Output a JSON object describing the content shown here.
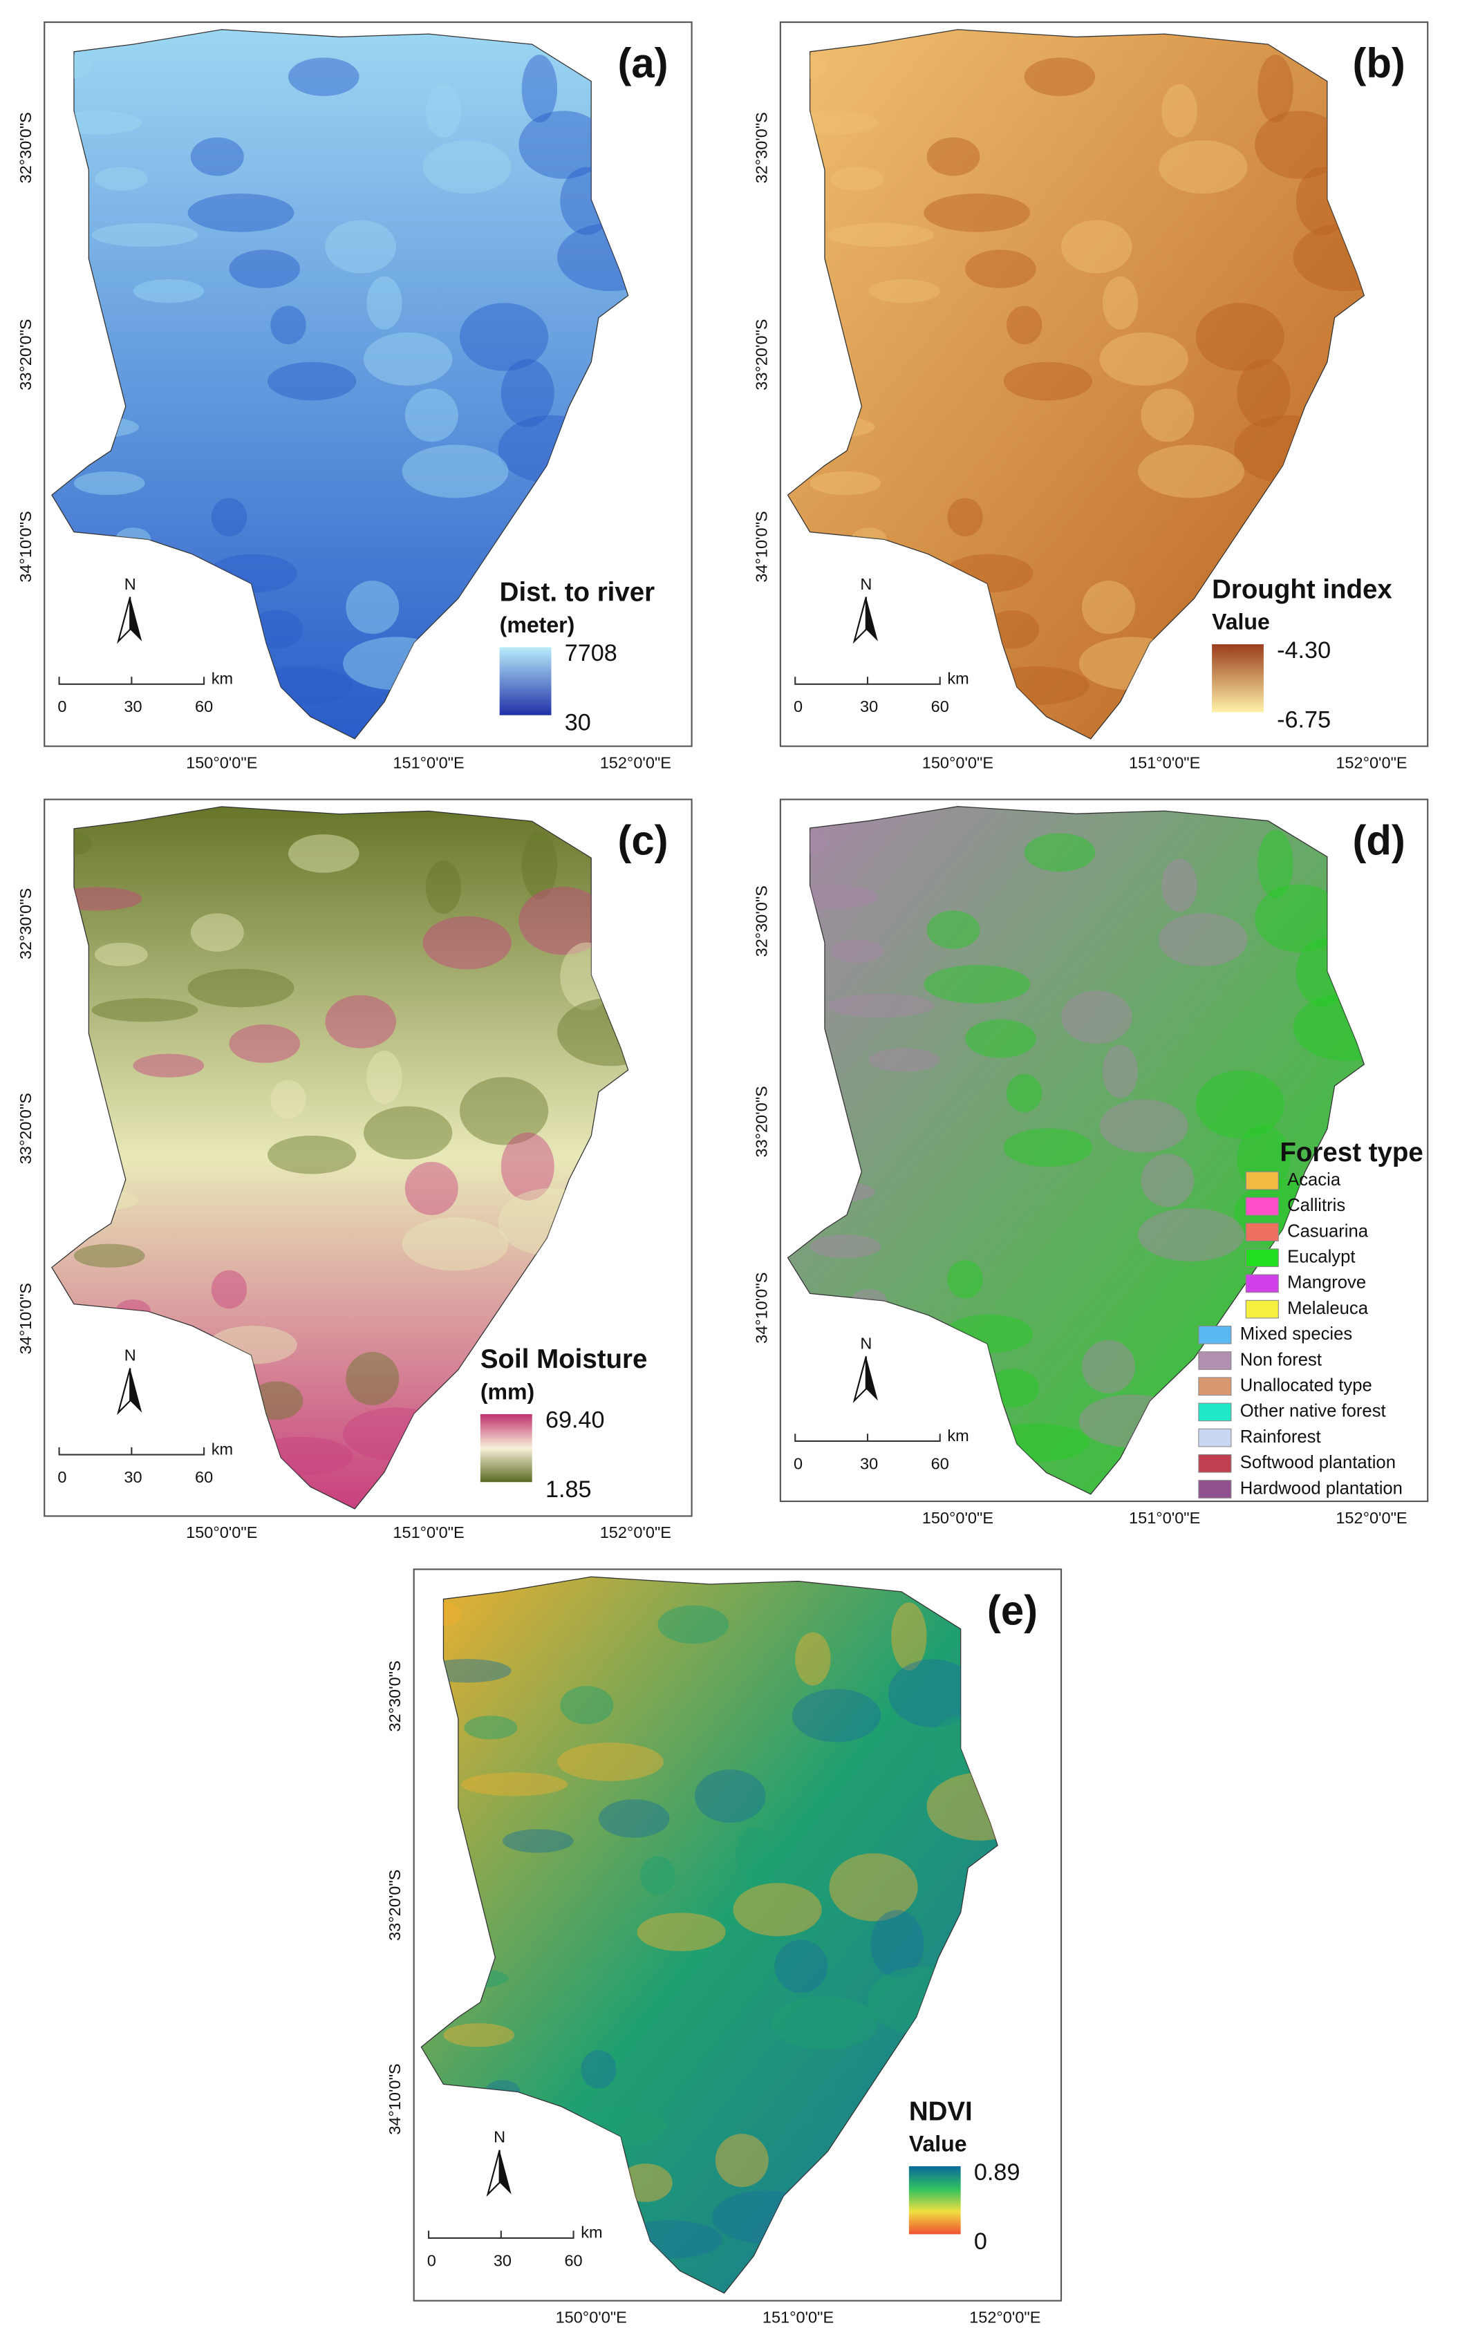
{
  "panels": [
    {
      "label": "(a)",
      "lat_labels": [
        "32°30'0\"S",
        "33°20'0\"S",
        "34°10'0\"S"
      ],
      "lon_labels": [
        "150°0'0\"E",
        "151°0'0\"E",
        "152°0'0\"E"
      ],
      "north": "N",
      "scale": {
        "labels": [
          "0",
          "30",
          "60"
        ],
        "unit": "km"
      },
      "legend": {
        "title": "Dist. to river",
        "subtitle": "(meter)",
        "max": "7708",
        "min": "30",
        "colors": [
          "#b8ecfa",
          "#2030a8"
        ]
      },
      "map_colors": [
        "#9bd6f2",
        "#2a5cc8"
      ]
    },
    {
      "label": "(b)",
      "lat_labels": [
        "32°30'0\"S",
        "33°20'0\"S",
        "34°10'0\"S"
      ],
      "lon_labels": [
        "150°0'0\"E",
        "151°0'0\"E",
        "152°0'0\"E"
      ],
      "north": "N",
      "scale": {
        "labels": [
          "0",
          "30",
          "60"
        ],
        "unit": "km"
      },
      "legend": {
        "title": "Drought index",
        "subtitle": "Value",
        "max": "-4.30",
        "min": "-6.75",
        "colors": [
          "#9a3c1c",
          "#fff2a8"
        ]
      },
      "map_colors": [
        "#f0c070",
        "#b8601e"
      ]
    },
    {
      "label": "(c)",
      "lat_labels": [
        "32°30'0\"S",
        "33°20'0\"S",
        "34°10'0\"S"
      ],
      "lon_labels": [
        "150°0'0\"E",
        "151°0'0\"E",
        "152°0'0\"E"
      ],
      "north": "N",
      "scale": {
        "labels": [
          "0",
          "30",
          "60"
        ],
        "unit": "km"
      },
      "legend": {
        "title": "Soil Moisture",
        "subtitle": "(mm)",
        "max": "69.40",
        "min": "1.85",
        "colors": [
          "#c0306e",
          "#f8f0d8",
          "#5a6a20"
        ]
      },
      "map_colors": [
        "#66762a",
        "#e8e8b8",
        "#c8407e"
      ]
    },
    {
      "label": "(d)",
      "lat_labels": [
        "32°30'0\"S",
        "33°20'0\"S",
        "34°10'0\"S"
      ],
      "lon_labels": [
        "150°0'0\"E",
        "151°0'0\"E",
        "152°0'0\"E"
      ],
      "north": "N",
      "scale": {
        "labels": [
          "0",
          "30",
          "60"
        ],
        "unit": "km"
      },
      "legend": {
        "title": "Forest type",
        "items": [
          {
            "name": "Acacia",
            "color": "#f4b942"
          },
          {
            "name": "Callitris",
            "color": "#ff4fc8"
          },
          {
            "name": "Casuarina",
            "color": "#f07060"
          },
          {
            "name": "Eucalypt",
            "color": "#22dd22"
          },
          {
            "name": "Mangrove",
            "color": "#d040e8"
          },
          {
            "name": "Melaleuca",
            "color": "#f5f040"
          },
          {
            "name": "Mixed species",
            "color": "#5bb8f0"
          },
          {
            "name": "Non forest",
            "color": "#b090b0"
          },
          {
            "name": "Unallocated type",
            "color": "#d89870"
          },
          {
            "name": "Other native forest",
            "color": "#20e8c8"
          },
          {
            "name": "Rainforest",
            "color": "#c8d8f0"
          },
          {
            "name": "Softwood plantation",
            "color": "#c04050"
          },
          {
            "name": "Hardwood plantation",
            "color": "#905090"
          }
        ]
      },
      "map_colors": [
        "#a888a8",
        "#22cc22"
      ]
    },
    {
      "label": "(e)",
      "lat_labels": [
        "32°30'0\"S",
        "33°20'0\"S",
        "34°10'0\"S"
      ],
      "lon_labels": [
        "150°0'0\"E",
        "151°0'0\"E",
        "152°0'0\"E"
      ],
      "north": "N",
      "scale": {
        "labels": [
          "0",
          "30",
          "60"
        ],
        "unit": "km"
      },
      "legend": {
        "title": "NDVI",
        "subtitle": "Value",
        "max": "0.89",
        "min": "0",
        "colors": [
          "#0a6a9a",
          "#30c060",
          "#f0e040",
          "#f05030"
        ]
      },
      "map_colors": [
        "#f0b030",
        "#20a070",
        "#1a7098"
      ]
    }
  ]
}
